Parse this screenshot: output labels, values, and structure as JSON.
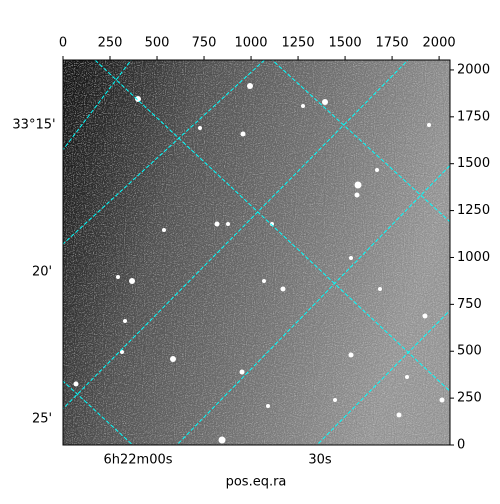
{
  "chart_data": {
    "type": "image",
    "xlabel": "pos.eq.ra",
    "xlim": [
      0,
      2058
    ],
    "xticks": [
      0,
      250,
      500,
      750,
      1000,
      1250,
      1500,
      1750,
      2000
    ],
    "ylim": [
      0,
      2053
    ],
    "yticks": [
      0,
      250,
      500,
      750,
      1000,
      1250,
      1500,
      1750,
      2000
    ],
    "dec_labels": [
      "33°15'",
      "20'",
      "25'"
    ],
    "ra_labels": [
      "6h22m00s",
      "30s"
    ],
    "grid_color": "#00ffff"
  }
}
